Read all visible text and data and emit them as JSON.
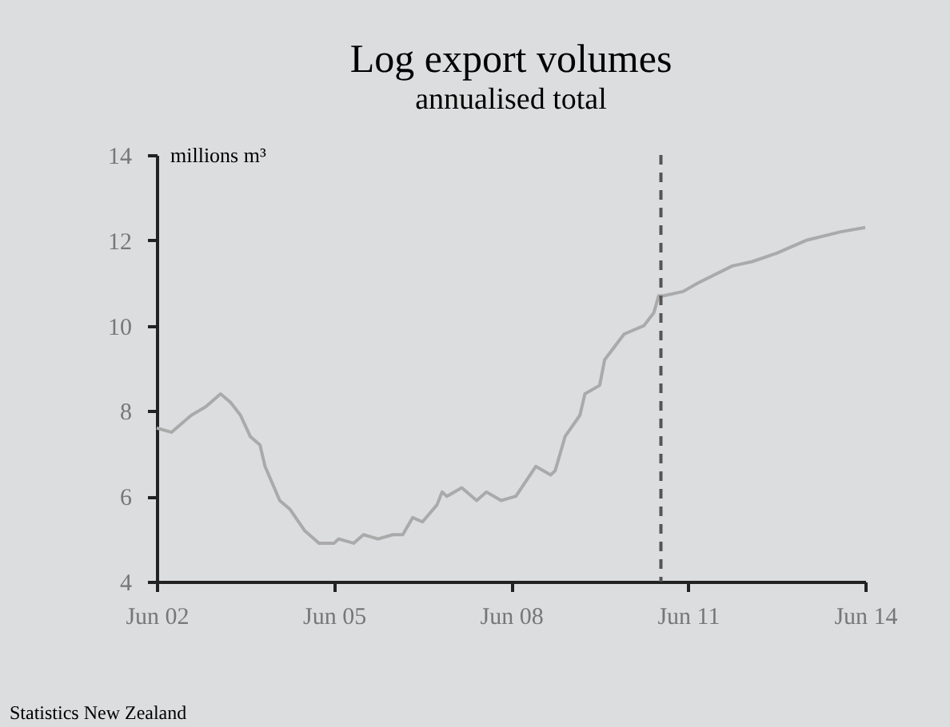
{
  "chart_data": {
    "type": "line",
    "title": "Log export volumes",
    "subtitle": "annualised total",
    "ylabel": "millions m³",
    "x": [
      "2002-06",
      "2002-09",
      "2003-01",
      "2003-04",
      "2003-07",
      "2003-09",
      "2003-11",
      "2004-01",
      "2004-03",
      "2004-04",
      "2004-07",
      "2004-09",
      "2004-12",
      "2005-03",
      "2005-06",
      "2005-07",
      "2005-10",
      "2005-12",
      "2006-03",
      "2006-06",
      "2006-08",
      "2006-10",
      "2006-12",
      "2007-03",
      "2007-04",
      "2007-05",
      "2007-08",
      "2007-11",
      "2008-01",
      "2008-04",
      "2008-07",
      "2008-11",
      "2009-02",
      "2009-03",
      "2009-05",
      "2009-08",
      "2009-09",
      "2009-12",
      "2010-01",
      "2010-05",
      "2010-09",
      "2010-11",
      "2010-12",
      "2011-01",
      "2011-05",
      "2011-08",
      "2012-03",
      "2012-07",
      "2012-12",
      "2013-06",
      "2014-01",
      "2014-06"
    ],
    "series": [
      {
        "color": "#aaaaaa",
        "values": [
          7.6,
          7.5,
          7.9,
          8.1,
          8.4,
          8.2,
          7.9,
          7.4,
          7.2,
          6.7,
          5.9,
          5.7,
          5.2,
          4.9,
          4.9,
          5.0,
          4.9,
          5.1,
          5.0,
          5.1,
          5.1,
          5.5,
          5.4,
          5.8,
          6.1,
          6.0,
          6.2,
          5.9,
          6.1,
          5.9,
          6.0,
          6.7,
          6.5,
          6.6,
          7.4,
          7.9,
          8.4,
          8.6,
          9.2,
          9.8,
          10.0,
          10.3,
          10.7,
          10.7,
          10.8,
          11.0,
          11.4,
          11.5,
          11.7,
          12.0,
          12.2,
          12.3
        ]
      }
    ],
    "xlim": [
      "2002-06",
      "2014-06"
    ],
    "xticks": [
      {
        "value": "2002-06",
        "label": "Jun 02"
      },
      {
        "value": "2005-06",
        "label": "Jun 05"
      },
      {
        "value": "2008-06",
        "label": "Jun 08"
      },
      {
        "value": "2011-06",
        "label": "Jun 11"
      },
      {
        "value": "2014-06",
        "label": "Jun 14"
      }
    ],
    "ylim": [
      4,
      14
    ],
    "yticks": [
      4,
      6,
      8,
      10,
      12,
      14
    ],
    "ref_lines": [
      {
        "axis": "x",
        "value": "2010-12-15",
        "label": null,
        "color": "#555555",
        "line_style": "dashed"
      }
    ],
    "annotations": [
      "Statistics New Zealand"
    ],
    "line_style": "solid"
  }
}
